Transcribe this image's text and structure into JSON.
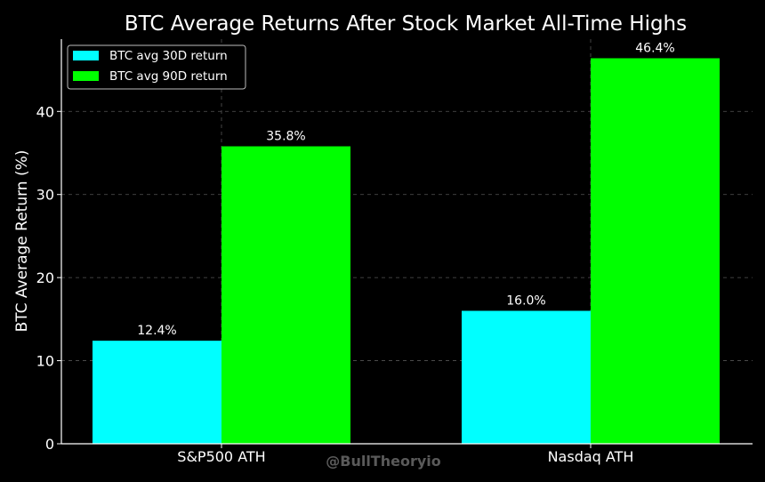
{
  "chart_data": {
    "type": "bar",
    "title": "BTC Average Returns After Stock Market All-Time Highs",
    "xlabel": "",
    "ylabel": "BTC Average Return (%)",
    "categories": [
      "S&P500 ATH",
      "Nasdaq ATH"
    ],
    "series": [
      {
        "name": "BTC avg 30D return",
        "values": [
          12.4,
          16.0
        ],
        "labels": [
          "12.4%",
          "16.0%"
        ],
        "color": "#00ffff"
      },
      {
        "name": "BTC avg 90D return",
        "values": [
          35.8,
          46.4
        ],
        "labels": [
          "35.8%",
          "46.4%"
        ],
        "color": "#00ff00"
      }
    ],
    "ylim": [
      0,
      48.7
    ],
    "yticks": [
      0,
      10,
      20,
      30,
      40
    ],
    "ytick_labels": [
      "0",
      "10",
      "20",
      "30",
      "40"
    ],
    "grid": true,
    "legend_position": "top-left",
    "watermark": "@BullTheoryio"
  },
  "colors": {
    "background": "#000000",
    "text": "#ffffff",
    "grid": "#555555",
    "watermark": "#5a5a5a"
  }
}
